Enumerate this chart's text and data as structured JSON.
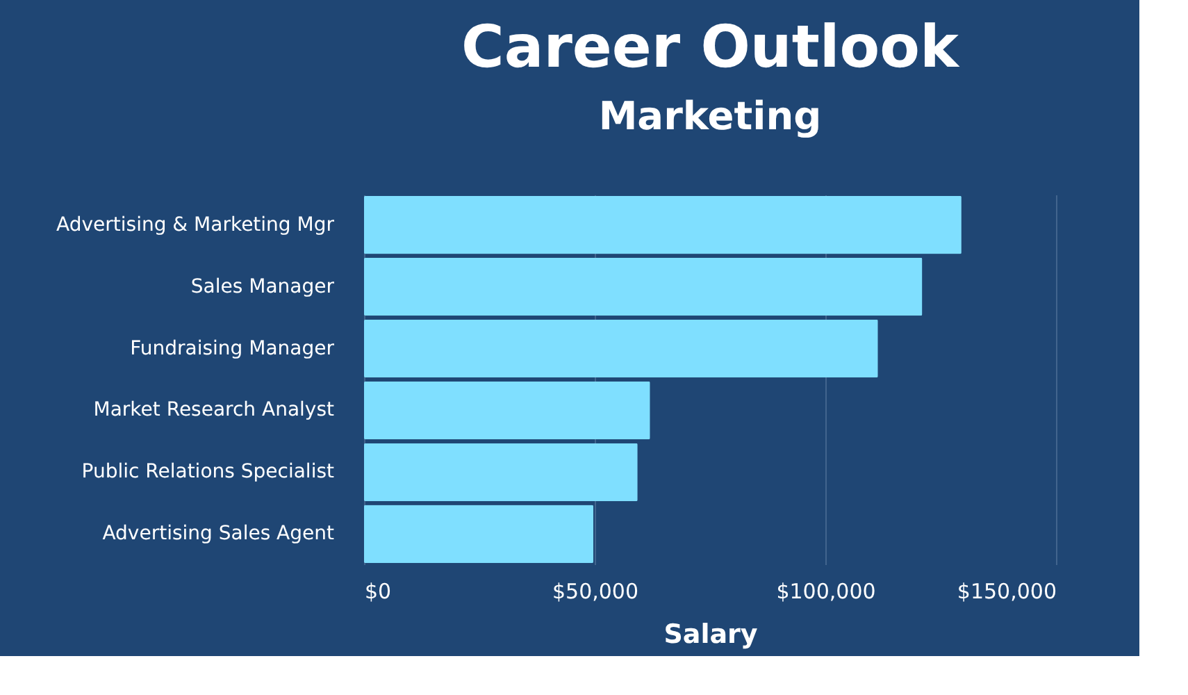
{
  "chart_data": {
    "type": "bar",
    "orientation": "horizontal",
    "title": "Career Outlook",
    "subtitle": "Marketing",
    "xlabel": "Salary",
    "categories": [
      "Advertising & Marketing Mgr",
      "Sales Manager",
      "Fundraising Manager",
      "Market Research Analyst",
      "Public Relations Specialist",
      "Advertising Sales Agent"
    ],
    "values": [
      129500,
      121000,
      111400,
      62000,
      59300,
      49700
    ],
    "color": "#7fdfff",
    "xlim": [
      0,
      150000
    ],
    "xticks": [
      {
        "value": 0,
        "label": "$0"
      },
      {
        "value": 50000,
        "label": "$50,000"
      },
      {
        "value": 100000,
        "label": "$100,000"
      },
      {
        "value": 150000,
        "label": "$150,000"
      }
    ],
    "grid": "x"
  }
}
